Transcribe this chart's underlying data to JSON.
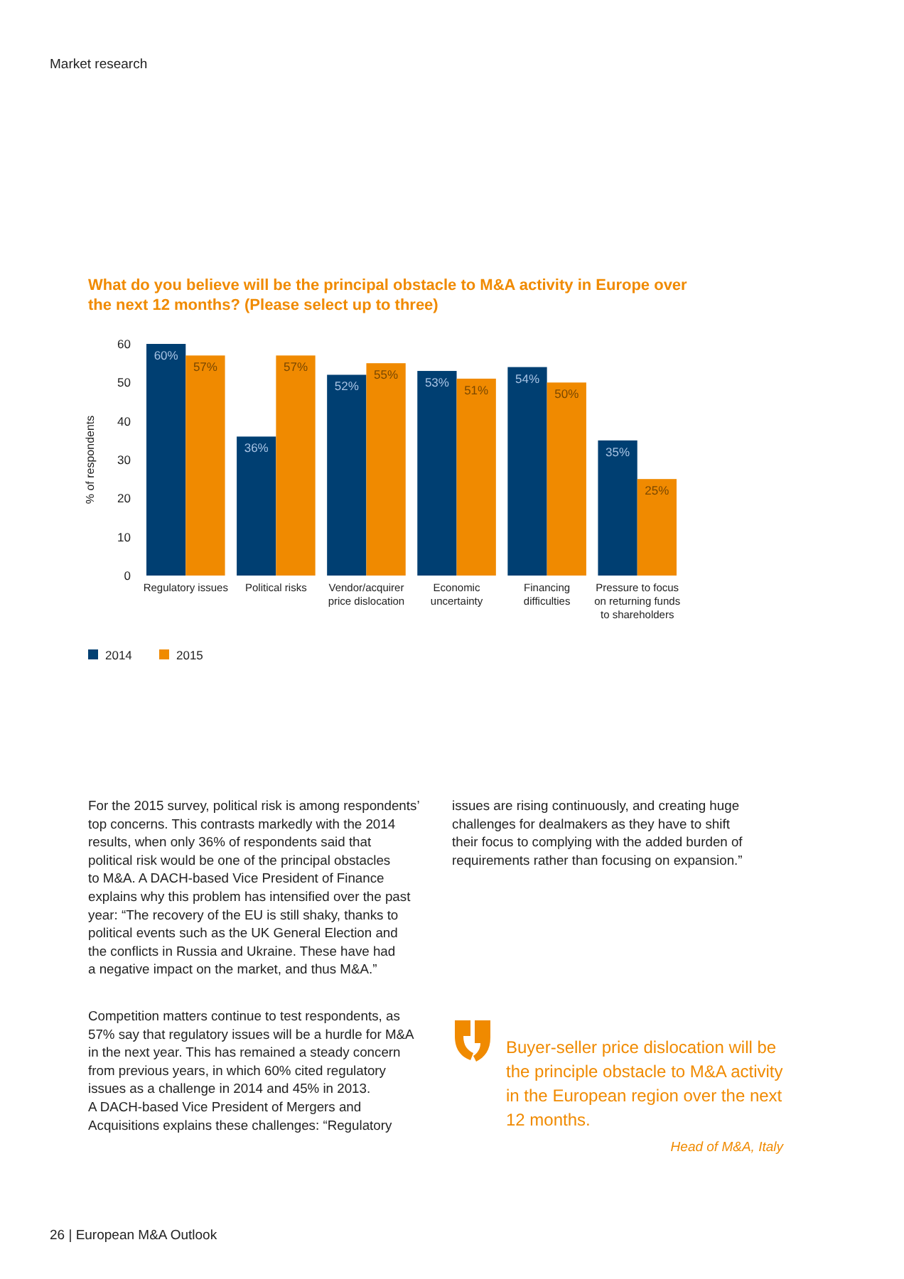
{
  "chart_data": {
    "type": "bar",
    "title": "What do you believe will be the principal obstacle to M&A activity in Europe over the next 12 months? (Please select up to three)",
    "ylabel": "% of respondents",
    "categories": [
      "Regulatory issues",
      "Political risks",
      "Vendor/acquirer price dislocation",
      "Economic uncertainty",
      "Financing difficulties",
      "Pressure to focus on returning funds to shareholders"
    ],
    "series": [
      {
        "name": "2014",
        "color": "#003f72",
        "values": [
          60,
          36,
          52,
          53,
          54,
          35
        ],
        "value_labels": [
          "60%",
          "36%",
          "52%",
          "53%",
          "54%",
          "35%"
        ]
      },
      {
        "name": "2015",
        "color": "#f08a00",
        "values": [
          57,
          57,
          55,
          51,
          50,
          25
        ],
        "value_labels": [
          "57%",
          "57%",
          "55%",
          "51%",
          "50%",
          "25%"
        ]
      }
    ],
    "ylim": [
      0,
      60
    ],
    "yticks": [
      0,
      10,
      20,
      30,
      40,
      50,
      60
    ],
    "grid": false,
    "legend": "bottom",
    "annotations": [
      "Market research",
      "For the 2015 survey, political risk is among respondents’\ntop concerns. This contrasts markedly with the 2014\nresults, when only 36% of respondents said that\npolitical risk would be one of the principal obstacles\nto M&A. A DACH-based Vice President of Finance\nexplains why this problem has intensified over the past\nyear: “The recovery of the EU is still shaky, thanks to\npolitical events such as the UK General Election and\nthe conflicts in Russia and Ukraine. These have had\na negative impact on the market, and thus M&A.”",
      "Competition matters continue to test respondents, as\n57% say that regulatory issues will be a hurdle for M&A\nin the next year. This has remained a steady concern\nfrom previous years, in which 60% cited regulatory\nissues as a challenge in 2014 and 45% in 2013.\nA DACH-based Vice President of Mergers and\nAcquisitions explains these challenges: “Regulatory",
      "issues are rising continuously, and creating huge\nchallenges for dealmakers as they have to shift\ntheir focus to complying with the added burden of\nrequirements rather than focusing on expansion.”",
      "Buyer-seller price dislocation will be\nthe principle obstacle to M&A activity\nin the European region over the next\n12 months.",
      "Head of M&A, Italy",
      "26 | European M&A Outlook"
    ]
  }
}
